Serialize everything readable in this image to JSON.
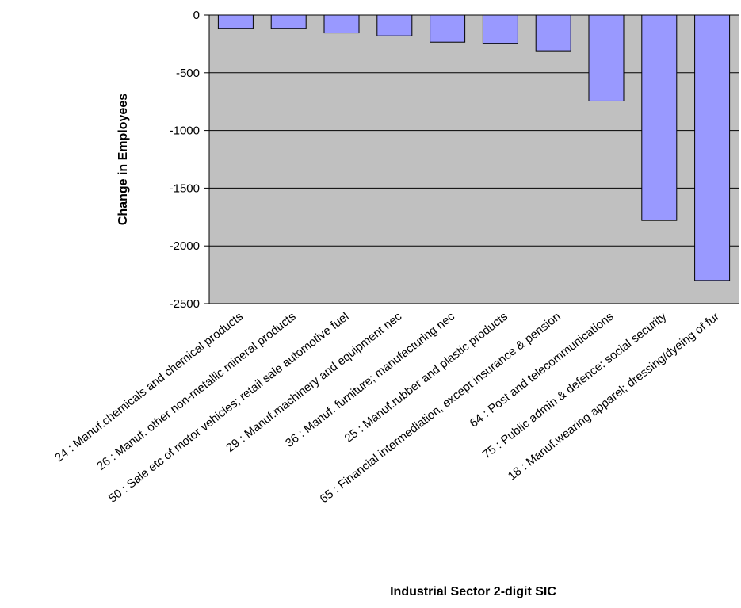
{
  "chart_data": {
    "type": "bar",
    "title": "",
    "xlabel": "Industrial Sector 2-digit SIC",
    "ylabel": "Change in Employees",
    "ylim": [
      -2500,
      0
    ],
    "yticks": [
      0,
      -500,
      -1000,
      -1500,
      -2000,
      -2500
    ],
    "grid": true,
    "categories": [
      "24 : Manuf.chemicals and chemical products",
      "26 : Manuf. other non-metallic mineral products",
      "50 : Sale etc of motor vehicles; retail sale automotive fuel",
      "29 : Manuf.machinery and equipment nec",
      "36 : Manuf. furniture; manufacturing nec",
      "25 : Manuf.rubber and plastic products",
      "65 : Financial intermediation, except insurance & pension",
      "64 : Post and telecommunications",
      "75 : Public admin & defence; social security",
      "18 : Manuf.wearing apparel; dressing/dyeing of fur"
    ],
    "values": [
      -115,
      -115,
      -155,
      -180,
      -235,
      -245,
      -310,
      -745,
      -1780,
      -2300
    ],
    "colors": {
      "plot_bg": "#c0c0c0",
      "bar_fill": "#9999ff",
      "bar_stroke": "#000000",
      "grid": "#000000"
    }
  }
}
